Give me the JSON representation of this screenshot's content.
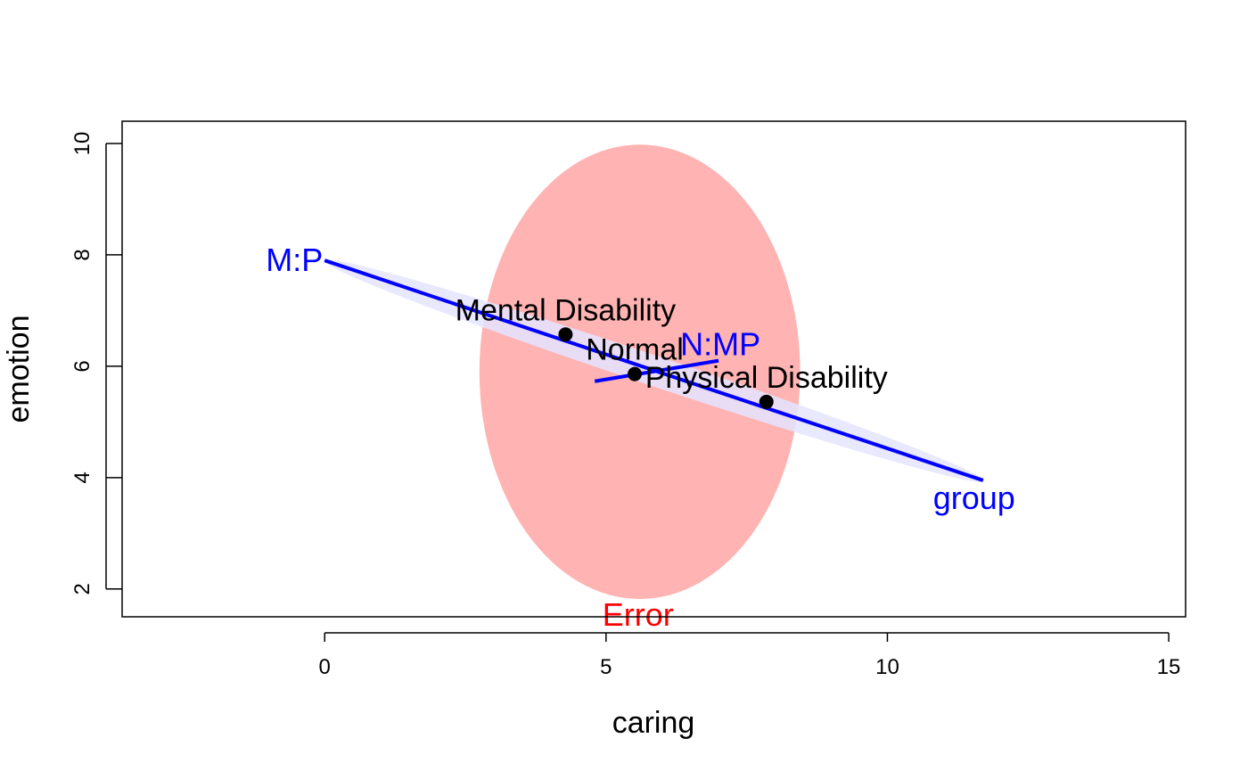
{
  "chart_data": {
    "type": "scatter",
    "title": "",
    "xlabel": "caring",
    "ylabel": "emotion",
    "xlim": [
      -3.6,
      15.3
    ],
    "ylim": [
      1.5,
      10.4
    ],
    "x_ticks": [
      0,
      5,
      10,
      15
    ],
    "y_ticks": [
      2,
      4,
      6,
      8,
      10
    ],
    "grid": false,
    "points": [
      {
        "label": "Mental Disability",
        "x": 4.28,
        "y": 6.57
      },
      {
        "label": "Normal",
        "x": 5.51,
        "y": 5.86
      },
      {
        "label": "Physical Disability",
        "x": 7.85,
        "y": 5.36
      }
    ],
    "point_color": "#000000",
    "error_ellipse": {
      "label": "Error",
      "center": [
        5.6,
        5.9
      ],
      "x_half_width": 2.85,
      "y_half_height": 4.08,
      "color": "#ffb3b3",
      "label_color": "#ff0000"
    },
    "effects": [
      {
        "label": "M:P",
        "start": [
          0.0,
          7.9
        ],
        "end": [
          11.7,
          3.95
        ],
        "color": "#0000ff"
      },
      {
        "label": "N:MP",
        "start": [
          4.8,
          5.73
        ],
        "end": [
          7.0,
          6.1
        ],
        "color": "#0000ff"
      },
      {
        "label": "group",
        "start": [
          0.0,
          7.9
        ],
        "end": [
          11.7,
          3.95
        ],
        "color": "#0000ff"
      }
    ],
    "hypothesis_ellipse": {
      "center": [
        5.85,
        5.92
      ],
      "semi_major": 6.2,
      "semi_minor": 0.27,
      "color": "#e4e4ff"
    }
  }
}
